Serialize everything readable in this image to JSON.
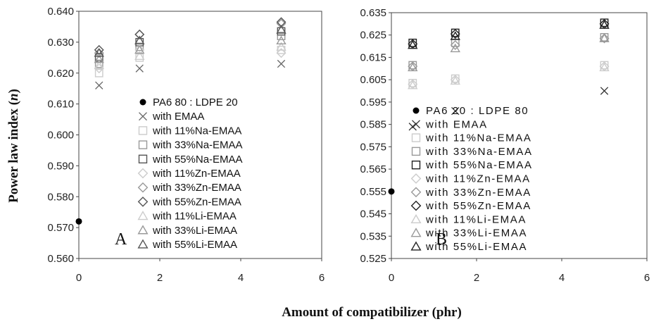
{
  "xlabel": "Amount of compatibilizer (phr)",
  "chart_data": [
    {
      "type": "scatter",
      "panel_label": "A",
      "ylabel": "Power law index (n)",
      "xlim": [
        0,
        6
      ],
      "ylim": [
        0.56,
        0.64
      ],
      "xticks": [
        "0",
        "2",
        "4",
        "6"
      ],
      "yticks": [
        "0.560",
        "0.570",
        "0.580",
        "0.590",
        "0.600",
        "0.610",
        "0.620",
        "0.630",
        "0.640"
      ],
      "grid": false,
      "legend_position": "bottom-right",
      "series": [
        {
          "name": "PA6 80 : LDPE 20",
          "marker": "dot",
          "color": "#000000",
          "points": [
            [
              0,
              0.572
            ]
          ]
        },
        {
          "name": "with EMAA",
          "marker": "x",
          "color": "#666666",
          "points": [
            [
              0.5,
              0.616
            ],
            [
              1.5,
              0.6215
            ],
            [
              5,
              0.623
            ]
          ]
        },
        {
          "name": "with 11%Na-EMAA",
          "marker": "square",
          "color": "#cccccc",
          "points": [
            [
              0.5,
              0.62
            ],
            [
              1.5,
              0.625
            ],
            [
              5,
              0.6275
            ]
          ]
        },
        {
          "name": "with 33%Na-EMAA",
          "marker": "square",
          "color": "#999999",
          "points": [
            [
              0.5,
              0.623
            ],
            [
              1.5,
              0.6285
            ],
            [
              5,
              0.632
            ]
          ]
        },
        {
          "name": "with 55%Na-EMAA",
          "marker": "square",
          "color": "#555555",
          "points": [
            [
              0.5,
              0.625
            ],
            [
              1.5,
              0.63
            ],
            [
              5,
              0.6335
            ]
          ]
        },
        {
          "name": "with 11%Zn-EMAA",
          "marker": "diamond",
          "color": "#cccccc",
          "points": [
            [
              0.5,
              0.6215
            ],
            [
              1.5,
              0.6275
            ],
            [
              5,
              0.6265
            ]
          ]
        },
        {
          "name": "with 33%Zn-EMAA",
          "marker": "diamond",
          "color": "#999999",
          "points": [
            [
              0.5,
              0.6265
            ],
            [
              1.5,
              0.6325
            ],
            [
              5,
              0.636
            ]
          ]
        },
        {
          "name": "with 55%Zn-EMAA",
          "marker": "diamond",
          "color": "#555555",
          "points": [
            [
              0.5,
              0.6275
            ],
            [
              1.5,
              0.6325
            ],
            [
              5,
              0.6365
            ]
          ]
        },
        {
          "name": "with 11%Li-EMAA",
          "marker": "triangle",
          "color": "#cccccc",
          "points": [
            [
              0.5,
              0.6225
            ],
            [
              1.5,
              0.6255
            ],
            [
              5,
              0.6285
            ]
          ]
        },
        {
          "name": "with 33%Li-EMAA",
          "marker": "triangle",
          "color": "#999999",
          "points": [
            [
              0.5,
              0.6245
            ],
            [
              1.5,
              0.6275
            ],
            [
              5,
              0.6305
            ]
          ]
        },
        {
          "name": "with 55%Li-EMAA",
          "marker": "triangle",
          "color": "#555555",
          "points": [
            [
              0.5,
              0.6265
            ],
            [
              1.5,
              0.6305
            ],
            [
              5,
              0.634
            ]
          ]
        }
      ]
    },
    {
      "type": "scatter",
      "panel_label": "B",
      "xlim": [
        0,
        6
      ],
      "ylim": [
        0.525,
        0.635
      ],
      "xticks": [
        "0",
        "2",
        "4",
        "6"
      ],
      "yticks": [
        "0.525",
        "0.535",
        "0.545",
        "0.555",
        "0.565",
        "0.575",
        "0.585",
        "0.595",
        "0.605",
        "0.615",
        "0.625",
        "0.635"
      ],
      "grid": false,
      "legend_position": "bottom-right",
      "series": [
        {
          "name": "PA6 20 : LDPE 80",
          "marker": "dot",
          "color": "#000000",
          "points": [
            [
              0,
              0.555
            ]
          ]
        },
        {
          "name": "with EMAA",
          "marker": "x",
          "color": "#333333",
          "points": [
            [
              0.5,
              0.584
            ],
            [
              1.5,
              0.591
            ],
            [
              5,
              0.6
            ]
          ]
        },
        {
          "name": "with 11%Na-EMAA",
          "marker": "square",
          "color": "#cccccc",
          "points": [
            [
              0.5,
              0.6035
            ],
            [
              1.5,
              0.6055
            ],
            [
              5,
              0.6115
            ]
          ]
        },
        {
          "name": "with 33%Na-EMAA",
          "marker": "square",
          "color": "#999999",
          "points": [
            [
              0.5,
              0.6115
            ],
            [
              1.5,
              0.6215
            ],
            [
              5,
              0.624
            ]
          ]
        },
        {
          "name": "with 55%Na-EMAA",
          "marker": "square",
          "color": "#222222",
          "points": [
            [
              0.5,
              0.6215
            ],
            [
              1.5,
              0.626
            ],
            [
              5,
              0.6305
            ]
          ]
        },
        {
          "name": "with 11%Zn-EMAA",
          "marker": "diamond",
          "color": "#cccccc",
          "points": [
            [
              0.5,
              0.603
            ],
            [
              1.5,
              0.605
            ],
            [
              5,
              0.611
            ]
          ]
        },
        {
          "name": "with 33%Zn-EMAA",
          "marker": "diamond",
          "color": "#999999",
          "points": [
            [
              0.5,
              0.611
            ],
            [
              1.5,
              0.6205
            ],
            [
              5,
              0.6235
            ]
          ]
        },
        {
          "name": "with 55%Zn-EMAA",
          "marker": "diamond",
          "color": "#222222",
          "points": [
            [
              0.5,
              0.621
            ],
            [
              1.5,
              0.6255
            ],
            [
              5,
              0.63
            ]
          ]
        },
        {
          "name": "with 11%Li-EMAA",
          "marker": "triangle",
          "color": "#cccccc",
          "points": [
            [
              0.5,
              0.6025
            ],
            [
              1.5,
              0.6045
            ],
            [
              5,
              0.6105
            ]
          ]
        },
        {
          "name": "with 33%Li-EMAA",
          "marker": "triangle",
          "color": "#999999",
          "points": [
            [
              0.5,
              0.6105
            ],
            [
              1.5,
              0.619
            ],
            [
              5,
              0.6235
            ]
          ]
        },
        {
          "name": "with 55%Li-EMAA",
          "marker": "triangle",
          "color": "#222222",
          "points": [
            [
              0.5,
              0.6205
            ],
            [
              1.5,
              0.6245
            ],
            [
              5,
              0.6295
            ]
          ]
        }
      ]
    }
  ]
}
